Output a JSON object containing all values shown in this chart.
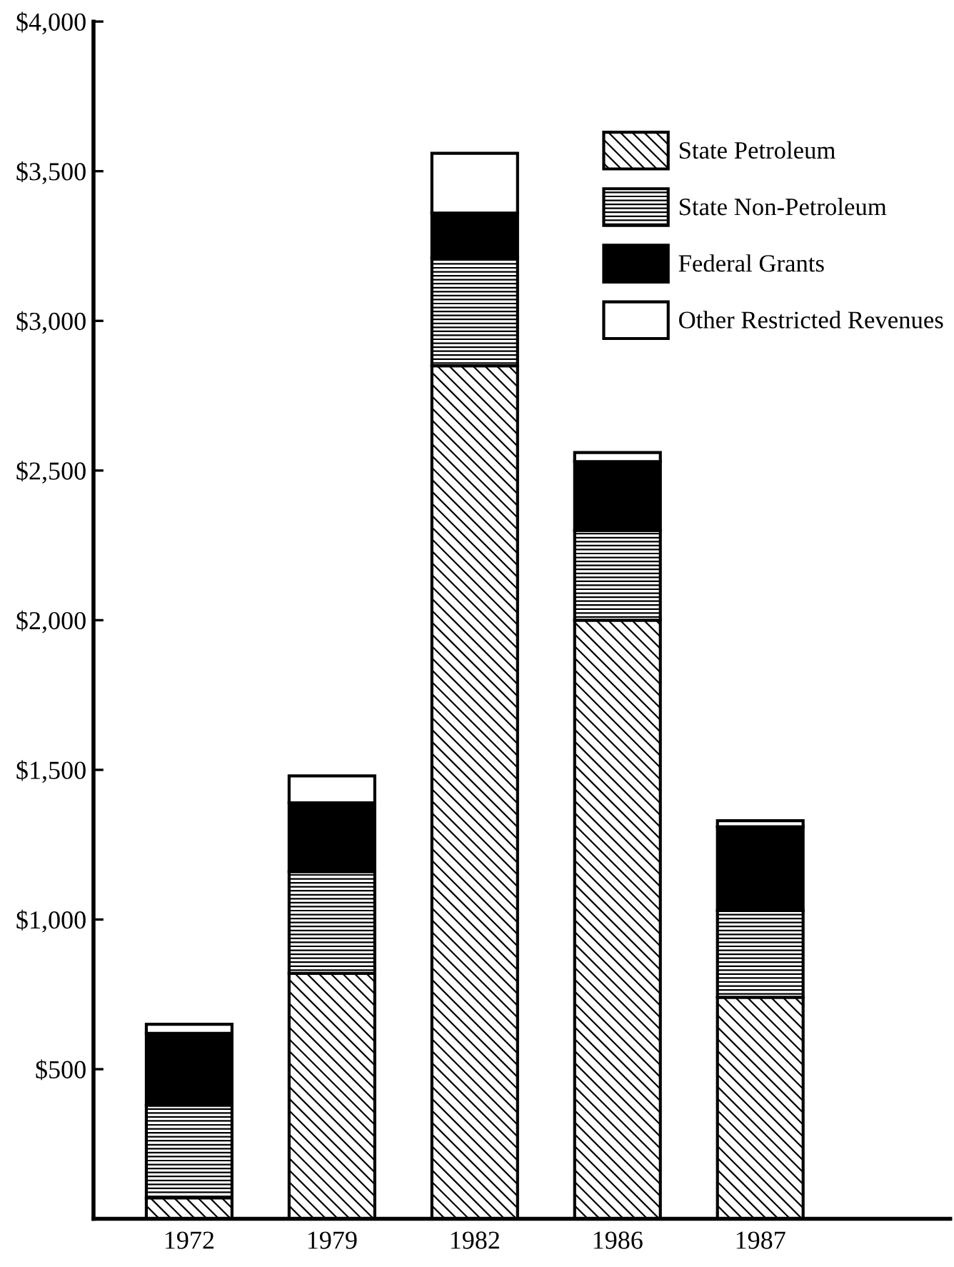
{
  "chart_data": {
    "type": "bar",
    "stacked": true,
    "categories": [
      "1972",
      "1979",
      "1982",
      "1986",
      "1987"
    ],
    "series": [
      {
        "name": "State Petroleum",
        "color": "#000000",
        "values": [
          70,
          820,
          2850,
          2000,
          740
        ]
      },
      {
        "name": "State Non-Petroleum",
        "color": "#000000",
        "values": [
          310,
          340,
          360,
          300,
          290
        ]
      },
      {
        "name": "Federal Grants",
        "color": "#000000",
        "values": [
          240,
          230,
          150,
          230,
          280
        ]
      },
      {
        "name": "Other Restricted Revenues",
        "color": "#ffffff",
        "values": [
          30,
          90,
          200,
          30,
          20
        ]
      }
    ],
    "ylim": [
      0,
      4000
    ],
    "yticks": [
      {
        "value": 500,
        "label": "$500"
      },
      {
        "value": 1000,
        "label": "$1,000"
      },
      {
        "value": 1500,
        "label": "$1,500"
      },
      {
        "value": 2000,
        "label": "$2,000"
      },
      {
        "value": 2500,
        "label": "$2,500"
      },
      {
        "value": 3000,
        "label": "$3,000"
      },
      {
        "value": 3500,
        "label": "$3,500"
      },
      {
        "value": 4000,
        "label": "$4,000"
      }
    ],
    "legend": "top right",
    "grid": false
  }
}
